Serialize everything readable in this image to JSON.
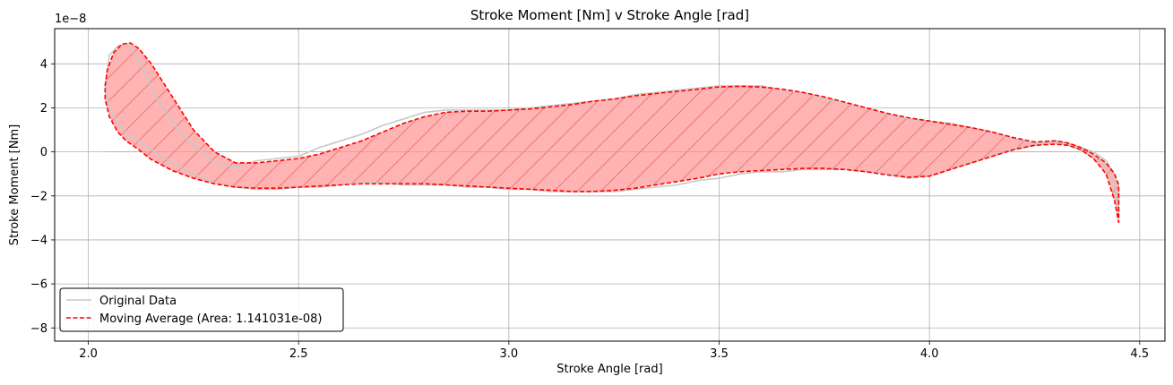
{
  "chart_data": {
    "type": "line",
    "title": "Stroke Moment [Nm] v Stroke Angle [rad]",
    "xlabel": "Stroke Angle [rad]",
    "ylabel": "Stroke Moment [Nm]",
    "y_offset_label": "1e−8",
    "xlim": [
      1.92,
      4.56
    ],
    "ylim": [
      -8.6,
      5.6
    ],
    "xticks": [
      2.0,
      2.5,
      3.0,
      3.5,
      4.0,
      4.5
    ],
    "xtick_labels": [
      "2.0",
      "2.5",
      "3.0",
      "3.5",
      "4.0",
      "4.5"
    ],
    "yticks": [
      -8,
      -6,
      -4,
      -2,
      0,
      2,
      4
    ],
    "ytick_labels": [
      "−8",
      "−6",
      "−4",
      "−2",
      "0",
      "2",
      "4"
    ],
    "grid": true,
    "legend_position": "lower-left",
    "colors": {
      "original": "#c8c8c8",
      "moving_average": "#ff0000",
      "fill": "#ffb3b3",
      "hatch": "#e87a7a"
    },
    "series": [
      {
        "name": "Original Data",
        "x": [
          2.04,
          2.05,
          2.07,
          2.09,
          2.11,
          2.13,
          2.15,
          2.18,
          2.21,
          2.25,
          2.3,
          2.35,
          2.4,
          2.45,
          2.5,
          2.55,
          2.6,
          2.65,
          2.7,
          2.75,
          2.8,
          2.85,
          2.9,
          2.95,
          3.0,
          3.05,
          3.1,
          3.15,
          3.2,
          3.25,
          3.3,
          3.35,
          3.4,
          3.45,
          3.5,
          3.55,
          3.6,
          3.65,
          3.7,
          3.75,
          3.8,
          3.85,
          3.9,
          3.95,
          4.0,
          4.05,
          4.1,
          4.15,
          4.2,
          4.25,
          4.3,
          4.33,
          4.36,
          4.39,
          4.42,
          4.44,
          4.45,
          4.45,
          4.44,
          4.42,
          4.39,
          4.36,
          4.33,
          4.3,
          4.25,
          4.2,
          4.15,
          4.1,
          4.05,
          4.0,
          3.95,
          3.9,
          3.85,
          3.8,
          3.75,
          3.7,
          3.65,
          3.6,
          3.55,
          3.5,
          3.45,
          3.4,
          3.35,
          3.3,
          3.25,
          3.2,
          3.15,
          3.1,
          3.05,
          3.0,
          2.95,
          2.9,
          2.85,
          2.8,
          2.75,
          2.7,
          2.65,
          2.6,
          2.55,
          2.5,
          2.45,
          2.4,
          2.35,
          2.3,
          2.25,
          2.2,
          2.15,
          2.12,
          2.09,
          2.07,
          2.05,
          2.04
        ],
        "y": [
          3.0,
          4.4,
          4.8,
          4.9,
          4.5,
          3.8,
          2.9,
          1.9,
          1.1,
          0.3,
          -0.5,
          -0.7,
          -0.4,
          -0.3,
          -0.2,
          0.2,
          0.5,
          0.8,
          1.2,
          1.5,
          1.8,
          1.9,
          1.9,
          1.9,
          1.9,
          2.0,
          2.1,
          2.2,
          2.3,
          2.4,
          2.6,
          2.7,
          2.8,
          2.9,
          3.0,
          3.0,
          3.0,
          2.8,
          2.7,
          2.4,
          2.2,
          2.0,
          1.7,
          1.5,
          1.4,
          1.3,
          1.1,
          0.9,
          0.6,
          0.4,
          0.5,
          0.4,
          0.2,
          0.0,
          -0.4,
          -1.0,
          -1.8,
          -2.8,
          -1.5,
          -0.6,
          -0.3,
          0.1,
          0.3,
          0.4,
          0.3,
          0.1,
          -0.2,
          -0.5,
          -0.8,
          -1.1,
          -1.2,
          -1.0,
          -0.9,
          -0.8,
          -0.8,
          -0.8,
          -0.9,
          -0.9,
          -1.0,
          -1.2,
          -1.3,
          -1.5,
          -1.6,
          -1.7,
          -1.8,
          -1.8,
          -1.8,
          -1.8,
          -1.7,
          -1.7,
          -1.6,
          -1.6,
          -1.5,
          -1.5,
          -1.5,
          -1.4,
          -1.4,
          -1.5,
          -1.6,
          -1.6,
          -1.7,
          -1.7,
          -1.6,
          -1.4,
          -1.0,
          -0.5,
          0.1,
          0.5,
          0.8,
          1.3,
          2.0,
          3.0
        ]
      },
      {
        "name": "Moving Average (Area: 1.141031e-08)",
        "x": [
          2.04,
          2.045,
          2.06,
          2.08,
          2.1,
          2.12,
          2.15,
          2.18,
          2.21,
          2.25,
          2.3,
          2.35,
          2.4,
          2.45,
          2.5,
          2.55,
          2.6,
          2.65,
          2.7,
          2.75,
          2.8,
          2.85,
          2.9,
          2.95,
          3.0,
          3.05,
          3.1,
          3.15,
          3.2,
          3.25,
          3.3,
          3.35,
          3.4,
          3.45,
          3.5,
          3.55,
          3.6,
          3.65,
          3.7,
          3.75,
          3.8,
          3.85,
          3.9,
          3.95,
          4.0,
          4.05,
          4.1,
          4.15,
          4.2,
          4.25,
          4.3,
          4.33,
          4.36,
          4.39,
          4.42,
          4.44,
          4.45,
          4.45,
          4.44,
          4.42,
          4.39,
          4.36,
          4.33,
          4.3,
          4.25,
          4.2,
          4.15,
          4.1,
          4.05,
          4.0,
          3.95,
          3.9,
          3.85,
          3.8,
          3.75,
          3.7,
          3.65,
          3.6,
          3.55,
          3.5,
          3.45,
          3.4,
          3.35,
          3.3,
          3.25,
          3.2,
          3.15,
          3.1,
          3.05,
          3.0,
          2.95,
          2.9,
          2.85,
          2.8,
          2.75,
          2.7,
          2.65,
          2.6,
          2.55,
          2.5,
          2.45,
          2.4,
          2.35,
          2.3,
          2.25,
          2.2,
          2.15,
          2.12,
          2.09,
          2.07,
          2.05,
          2.04
        ],
        "y": [
          3.0,
          3.7,
          4.5,
          4.9,
          4.95,
          4.7,
          4.0,
          3.1,
          2.2,
          1.0,
          0.0,
          -0.5,
          -0.5,
          -0.4,
          -0.3,
          -0.1,
          0.2,
          0.5,
          0.9,
          1.3,
          1.6,
          1.8,
          1.85,
          1.85,
          1.9,
          1.95,
          2.05,
          2.15,
          2.3,
          2.4,
          2.55,
          2.65,
          2.75,
          2.85,
          2.95,
          2.98,
          2.95,
          2.85,
          2.7,
          2.5,
          2.25,
          2.0,
          1.75,
          1.55,
          1.4,
          1.25,
          1.1,
          0.9,
          0.65,
          0.45,
          0.5,
          0.4,
          0.2,
          -0.1,
          -0.5,
          -1.0,
          -1.5,
          -3.2,
          -2.2,
          -1.0,
          -0.3,
          0.1,
          0.3,
          0.35,
          0.3,
          0.1,
          -0.2,
          -0.5,
          -0.8,
          -1.1,
          -1.15,
          -1.05,
          -0.9,
          -0.8,
          -0.75,
          -0.75,
          -0.8,
          -0.85,
          -0.9,
          -1.0,
          -1.2,
          -1.35,
          -1.5,
          -1.65,
          -1.75,
          -1.8,
          -1.8,
          -1.75,
          -1.7,
          -1.65,
          -1.6,
          -1.55,
          -1.5,
          -1.45,
          -1.45,
          -1.45,
          -1.45,
          -1.5,
          -1.55,
          -1.6,
          -1.65,
          -1.65,
          -1.6,
          -1.45,
          -1.2,
          -0.85,
          -0.35,
          0.1,
          0.5,
          0.9,
          1.6,
          2.4
        ]
      }
    ]
  }
}
